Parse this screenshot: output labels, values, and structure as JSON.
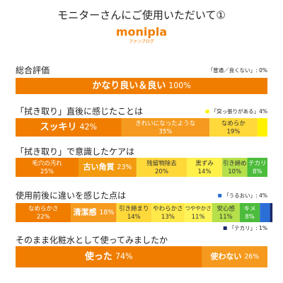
{
  "header": {
    "title": "モニターさんにご使用いただいて①",
    "logo": "monipla",
    "logo_sub": "ファンブログ"
  },
  "chart_data": [
    {
      "type": "stacked_bar",
      "title": "総合評価",
      "notes": [
        {
          "text": "「普通／良くない」: 0%"
        }
      ],
      "categories": [
        "かなり良い＆良い",
        null
      ],
      "values": [
        100,
        0
      ],
      "value_labels": [
        "100%",
        null
      ],
      "colors": [
        "#f07d00",
        "#ffef00"
      ],
      "xlim": [
        0,
        100
      ]
    },
    {
      "type": "stacked_bar",
      "title": "「拭き取り」直後に感じたことは",
      "notes": [
        {
          "text": "「突っ張りがある」4%",
          "color": "#fff200"
        }
      ],
      "categories": [
        "スッキリ",
        "きれいになったような",
        "なめらか",
        null
      ],
      "values": [
        42,
        35,
        19,
        4
      ],
      "value_labels": [
        "42%",
        "35%",
        "19%",
        null
      ],
      "colors": [
        "#f07d00",
        "#f59a1e",
        "#ffd83a",
        "#fff200"
      ],
      "xlim": [
        0,
        100
      ]
    },
    {
      "type": "stacked_bar",
      "title": "「拭き取り」で意識したケアは",
      "notes": [],
      "categories": [
        "毛穴の汚れ",
        "古い角質",
        "残留物除去",
        "黒ずみ",
        "引き締め",
        "テカリ"
      ],
      "values": [
        25,
        23,
        20,
        14,
        10,
        8
      ],
      "value_labels": [
        "25%",
        "23%",
        "20%",
        "14%",
        "10%",
        "8%"
      ],
      "colors": [
        "#f07d00",
        "#f39a10",
        "#ffd83a",
        "#fff04a",
        "#b5e04a",
        "#4cbc3c"
      ],
      "xlim": [
        0,
        100
      ]
    },
    {
      "type": "stacked_bar",
      "title": "使用前後に違いを感じた点は",
      "notes": [
        {
          "text": "「うるおい」: 4%",
          "color": "#2b6fd6"
        },
        {
          "text": "「テカリ」: 1%",
          "color": "#1c2a6b",
          "below": true
        }
      ],
      "categories": [
        "なめらかさ",
        "清潔感",
        "引き締まり",
        "やわらかさ",
        "つややかさ",
        "安心感",
        "キメ",
        null,
        null
      ],
      "values": [
        22,
        18,
        14,
        13,
        11,
        11,
        8,
        4,
        1
      ],
      "value_labels": [
        "22%",
        "18%",
        "14%",
        "13%",
        "11%",
        "11%",
        "8%",
        null,
        null
      ],
      "colors": [
        "#f07d00",
        "#f59a1e",
        "#ffd83a",
        "#ffe84a",
        "#fff35a",
        "#b5e04a",
        "#4cbc3c",
        "#2b6fd6",
        "#1c2a6b"
      ],
      "xlim": [
        0,
        100
      ]
    },
    {
      "type": "stacked_bar",
      "title": "そのまま化粧水として使ってみましたか",
      "notes": [],
      "categories": [
        "使った",
        "使わない"
      ],
      "values": [
        74,
        26
      ],
      "value_labels": [
        "74%",
        "26%"
      ],
      "colors": [
        "#f07d00",
        "#f59a1e"
      ],
      "xlim": [
        0,
        100
      ]
    }
  ]
}
